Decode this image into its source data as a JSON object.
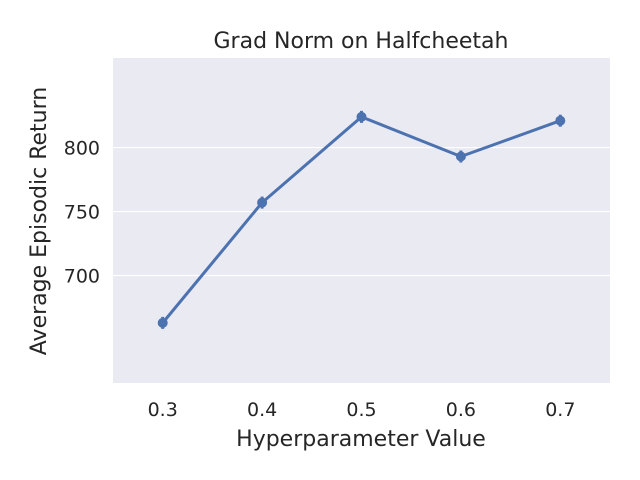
{
  "chart_data": {
    "type": "line",
    "title": "Grad Norm on Halfcheetah",
    "xlabel": "Hyperparameter Value",
    "ylabel": "Average Episodic Return",
    "categories": [
      "0.3",
      "0.4",
      "0.5",
      "0.6",
      "0.7"
    ],
    "series": [
      {
        "values": [
          663,
          757,
          824,
          793,
          821
        ]
      }
    ],
    "yticks": [
      700,
      750,
      800
    ],
    "ylim": [
      616,
      870
    ],
    "grid": true,
    "colors": {
      "line": "#4c72b0",
      "plot_background": "#eaeaf2",
      "grid": "#ffffff"
    }
  }
}
